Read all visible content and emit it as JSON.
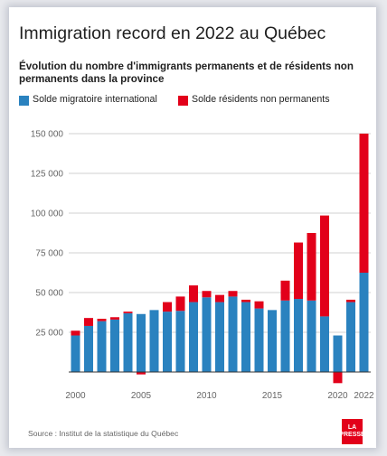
{
  "title": "Immigration record en 2022 au Québec",
  "subtitle": "Évolution du nombre d'immigrants permanents et de résidents non permanents dans la province",
  "source": "Source : Institut de la statistique du Québec",
  "logo": {
    "line1": "LA",
    "line2": "PRESSE"
  },
  "colors": {
    "blue": "#2a82bf",
    "red": "#e2001a",
    "grid": "#d2d2d2",
    "tick": "#666666"
  },
  "chart_data": {
    "type": "bar",
    "stacked": true,
    "title": "Immigration record en 2022 au Québec",
    "subtitle": "Évolution du nombre d'immigrants permanents et de résidents non permanents dans la province",
    "xlabel": "",
    "ylabel": "",
    "ylim": [
      -8000,
      150000
    ],
    "grid": true,
    "legend": "top-left",
    "x": [
      2000,
      2001,
      2002,
      2003,
      2004,
      2005,
      2006,
      2007,
      2008,
      2009,
      2010,
      2011,
      2012,
      2013,
      2014,
      2015,
      2016,
      2017,
      2018,
      2019,
      2020,
      2021,
      2022
    ],
    "y_ticks": [
      25000,
      50000,
      75000,
      100000,
      125000,
      150000
    ],
    "y_tick_labels": [
      "25 000",
      "50 000",
      "75 000",
      "100 000",
      "125 000",
      "150 000"
    ],
    "x_ticks": [
      2000,
      2005,
      2010,
      2015,
      2020,
      2022
    ],
    "x_tick_labels": [
      "2000",
      "2005",
      "2010",
      "2015",
      "2020",
      "2022"
    ],
    "series": [
      {
        "name": "Solde migratoire international",
        "color": "#2a82bf",
        "values": [
          23000,
          29000,
          32000,
          33000,
          37000,
          36500,
          39000,
          38000,
          38500,
          44000,
          47000,
          44000,
          47500,
          44000,
          40000,
          39000,
          45000,
          46000,
          45000,
          35000,
          23000,
          44000,
          62500
        ]
      },
      {
        "name": "Solde résidents non permanents",
        "color": "#e2001a",
        "values": [
          3000,
          5000,
          1500,
          1500,
          1000,
          -1500,
          0,
          6000,
          9000,
          10500,
          4000,
          4500,
          3500,
          1500,
          4500,
          0,
          12500,
          35500,
          42500,
          63500,
          -7000,
          1500,
          87500
        ]
      }
    ]
  }
}
